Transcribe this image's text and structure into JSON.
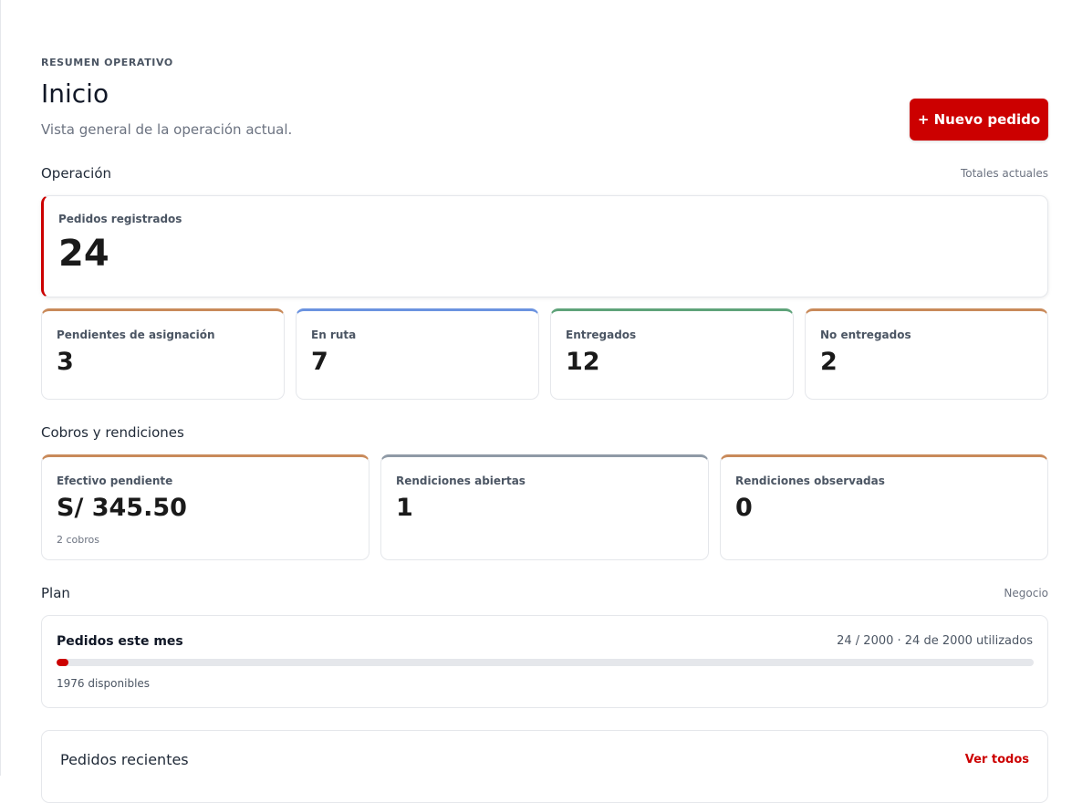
{
  "header": {
    "eyebrow": "RESUMEN OPERATIVO",
    "title": "Inicio",
    "subtitle": "Vista general de la operación actual.",
    "new_order_label": "+ Nuevo pedido"
  },
  "operacion": {
    "title": "Operación",
    "note": "Totales actuales",
    "hero": {
      "label": "Pedidos registrados",
      "value": "24",
      "accent": "#cc0000"
    },
    "stats": [
      {
        "label": "Pendientes de asignación",
        "value": "3",
        "accent": "#c98a5a"
      },
      {
        "label": "En ruta",
        "value": "7",
        "accent": "#6b93e0"
      },
      {
        "label": "Entregados",
        "value": "12",
        "accent": "#5fa37a"
      },
      {
        "label": "No entregados",
        "value": "2",
        "accent": "#c98a5a"
      }
    ]
  },
  "cobros": {
    "title": "Cobros y rendiciones",
    "cards": [
      {
        "label": "Efectivo pendiente",
        "value": "S/ 345.50",
        "sub": "2 cobros",
        "accent": "#c98a5a"
      },
      {
        "label": "Rendiciones abiertas",
        "value": "1",
        "accent": "#8f9aa6"
      },
      {
        "label": "Rendiciones observadas",
        "value": "0",
        "accent": "#c98a5a"
      }
    ]
  },
  "plan": {
    "title": "Plan",
    "note": "Negocio",
    "card_title": "Pedidos este mes",
    "usage": "24 / 2000 · 24 de 2000 utilizados",
    "progress_fraction": 0.012,
    "available": "1976 disponibles"
  },
  "recent": {
    "title": "Pedidos recientes",
    "link_label": "Ver todos"
  }
}
